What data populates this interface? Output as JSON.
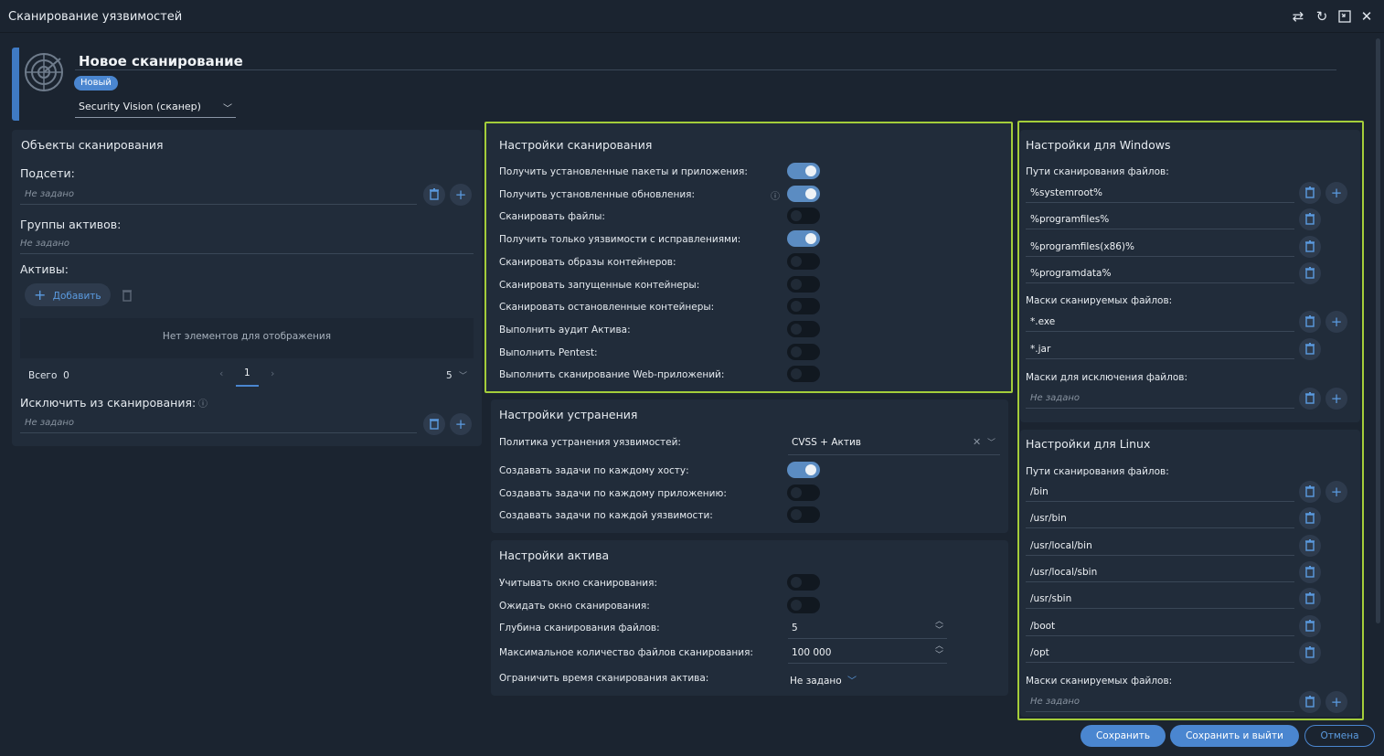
{
  "window": {
    "title": "Сканирование уязвимостей"
  },
  "header": {
    "title": "Новое сканирование",
    "badge": "Новый",
    "scanner": "Security Vision (сканер)"
  },
  "objects": {
    "title": "Объекты сканирования",
    "subnets_label": "Подсети:",
    "subnets_placeholder": "Не задано",
    "groups_label": "Группы активов:",
    "groups_placeholder": "Не задано",
    "assets_label": "Активы:",
    "add_label": "Добавить",
    "empty_text": "Нет элементов для отображения",
    "total_label": "Всего",
    "total_value": "0",
    "page": "1",
    "page_size": "5",
    "exclude_label": "Исключить из сканирования:",
    "exclude_placeholder": "Не задано"
  },
  "scan_settings": {
    "title": "Настройки сканирования",
    "rows": [
      {
        "label": "Получить установленные пакеты и приложения:",
        "on": true
      },
      {
        "label": "Получить установленные обновления:",
        "on": true
      },
      {
        "label": "Сканировать файлы:",
        "on": false
      },
      {
        "label": "Получить только уязвимости с исправлениями:",
        "on": true
      },
      {
        "label": "Сканировать образы контейнеров:",
        "on": false
      },
      {
        "label": "Сканировать запущенные контейнеры:",
        "on": false
      },
      {
        "label": "Сканировать остановленные контейнеры:",
        "on": false
      },
      {
        "label": "Выполнить аудит Актива:",
        "on": false
      },
      {
        "label": "Выполнить Pentest:",
        "on": false
      },
      {
        "label": "Выполнить сканирование Web-приложений:",
        "on": false
      }
    ]
  },
  "remediation": {
    "title": "Настройки устранения",
    "policy_label": "Политика устранения уязвимостей:",
    "policy_value": "CVSS + Актив",
    "rows": [
      {
        "label": "Создавать задачи по каждому хосту:",
        "on": true
      },
      {
        "label": "Создавать задачи по каждому приложению:",
        "on": false
      },
      {
        "label": "Создавать задачи по каждой уязвимости:",
        "on": false
      }
    ]
  },
  "asset_settings": {
    "title": "Настройки актива",
    "rows": [
      {
        "label": "Учитывать окно сканирования:",
        "on": false
      },
      {
        "label": "Ожидать окно сканирования:",
        "on": false
      }
    ],
    "depth_label": "Глубина сканирования файлов:",
    "depth_value": "5",
    "max_files_label": "Максимальное количество файлов сканирования:",
    "max_files_value": "100 000",
    "limit_label": "Ограничить время сканирования актива:",
    "limit_value": "Не задано"
  },
  "windows": {
    "title": "Настройки для Windows",
    "paths_label": "Пути сканирования файлов:",
    "paths": [
      "%systemroot%",
      "%programfiles%",
      "%programfiles(x86)%",
      "%programdata%"
    ],
    "masks_label": "Маски сканируемых файлов:",
    "masks": [
      "*.exe",
      "*.jar"
    ],
    "exclude_label": "Маски для исключения файлов:",
    "exclude_placeholder": "Не задано"
  },
  "linux": {
    "title": "Настройки для Linux",
    "paths_label": "Пути сканирования файлов:",
    "paths": [
      "/bin",
      "/usr/bin",
      "/usr/local/bin",
      "/usr/local/sbin",
      "/usr/sbin",
      "/boot",
      "/opt"
    ],
    "masks_label": "Маски сканируемых файлов:",
    "masks_placeholder": "Не задано"
  },
  "footer": {
    "save": "Сохранить",
    "save_exit": "Сохранить и выйти",
    "cancel": "Отмена"
  },
  "colors": {
    "accent": "#4a86d0",
    "highlight": "#a4cd3a",
    "toggle_on": "#5b8cc2"
  }
}
